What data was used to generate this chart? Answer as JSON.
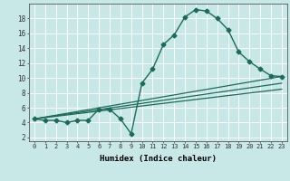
{
  "title": "",
  "xlabel": "Humidex (Indice chaleur)",
  "ylabel": "",
  "bg_color": "#c8e8e8",
  "grid_color": "#ffffff",
  "line_color": "#1a6b5a",
  "x_ticks": [
    0,
    1,
    2,
    3,
    4,
    5,
    6,
    7,
    8,
    9,
    10,
    11,
    12,
    13,
    14,
    15,
    16,
    17,
    18,
    19,
    20,
    21,
    22,
    23
  ],
  "y_ticks": [
    2,
    4,
    6,
    8,
    10,
    12,
    14,
    16,
    18
  ],
  "xlim": [
    -0.5,
    23.5
  ],
  "ylim": [
    1.5,
    20
  ],
  "lines": [
    {
      "x": [
        0,
        1,
        2,
        3,
        4,
        5,
        6,
        7,
        8,
        9,
        10,
        11,
        12,
        13,
        14,
        15,
        16,
        17,
        18,
        19,
        20,
        21,
        22,
        23
      ],
      "y": [
        4.5,
        4.3,
        4.3,
        4.0,
        4.3,
        4.3,
        5.8,
        5.8,
        4.5,
        2.5,
        9.3,
        11.2,
        14.5,
        15.8,
        18.2,
        19.2,
        19.0,
        18.0,
        16.5,
        13.5,
        12.2,
        11.2,
        10.3,
        10.2
      ],
      "marker": "D",
      "markersize": 2.5,
      "linewidth": 1.0
    },
    {
      "x": [
        0,
        23
      ],
      "y": [
        4.5,
        10.2
      ],
      "marker": null,
      "linewidth": 0.9
    },
    {
      "x": [
        0,
        23
      ],
      "y": [
        4.5,
        9.3
      ],
      "marker": null,
      "linewidth": 0.9
    },
    {
      "x": [
        0,
        23
      ],
      "y": [
        4.5,
        8.5
      ],
      "marker": null,
      "linewidth": 0.9
    }
  ]
}
